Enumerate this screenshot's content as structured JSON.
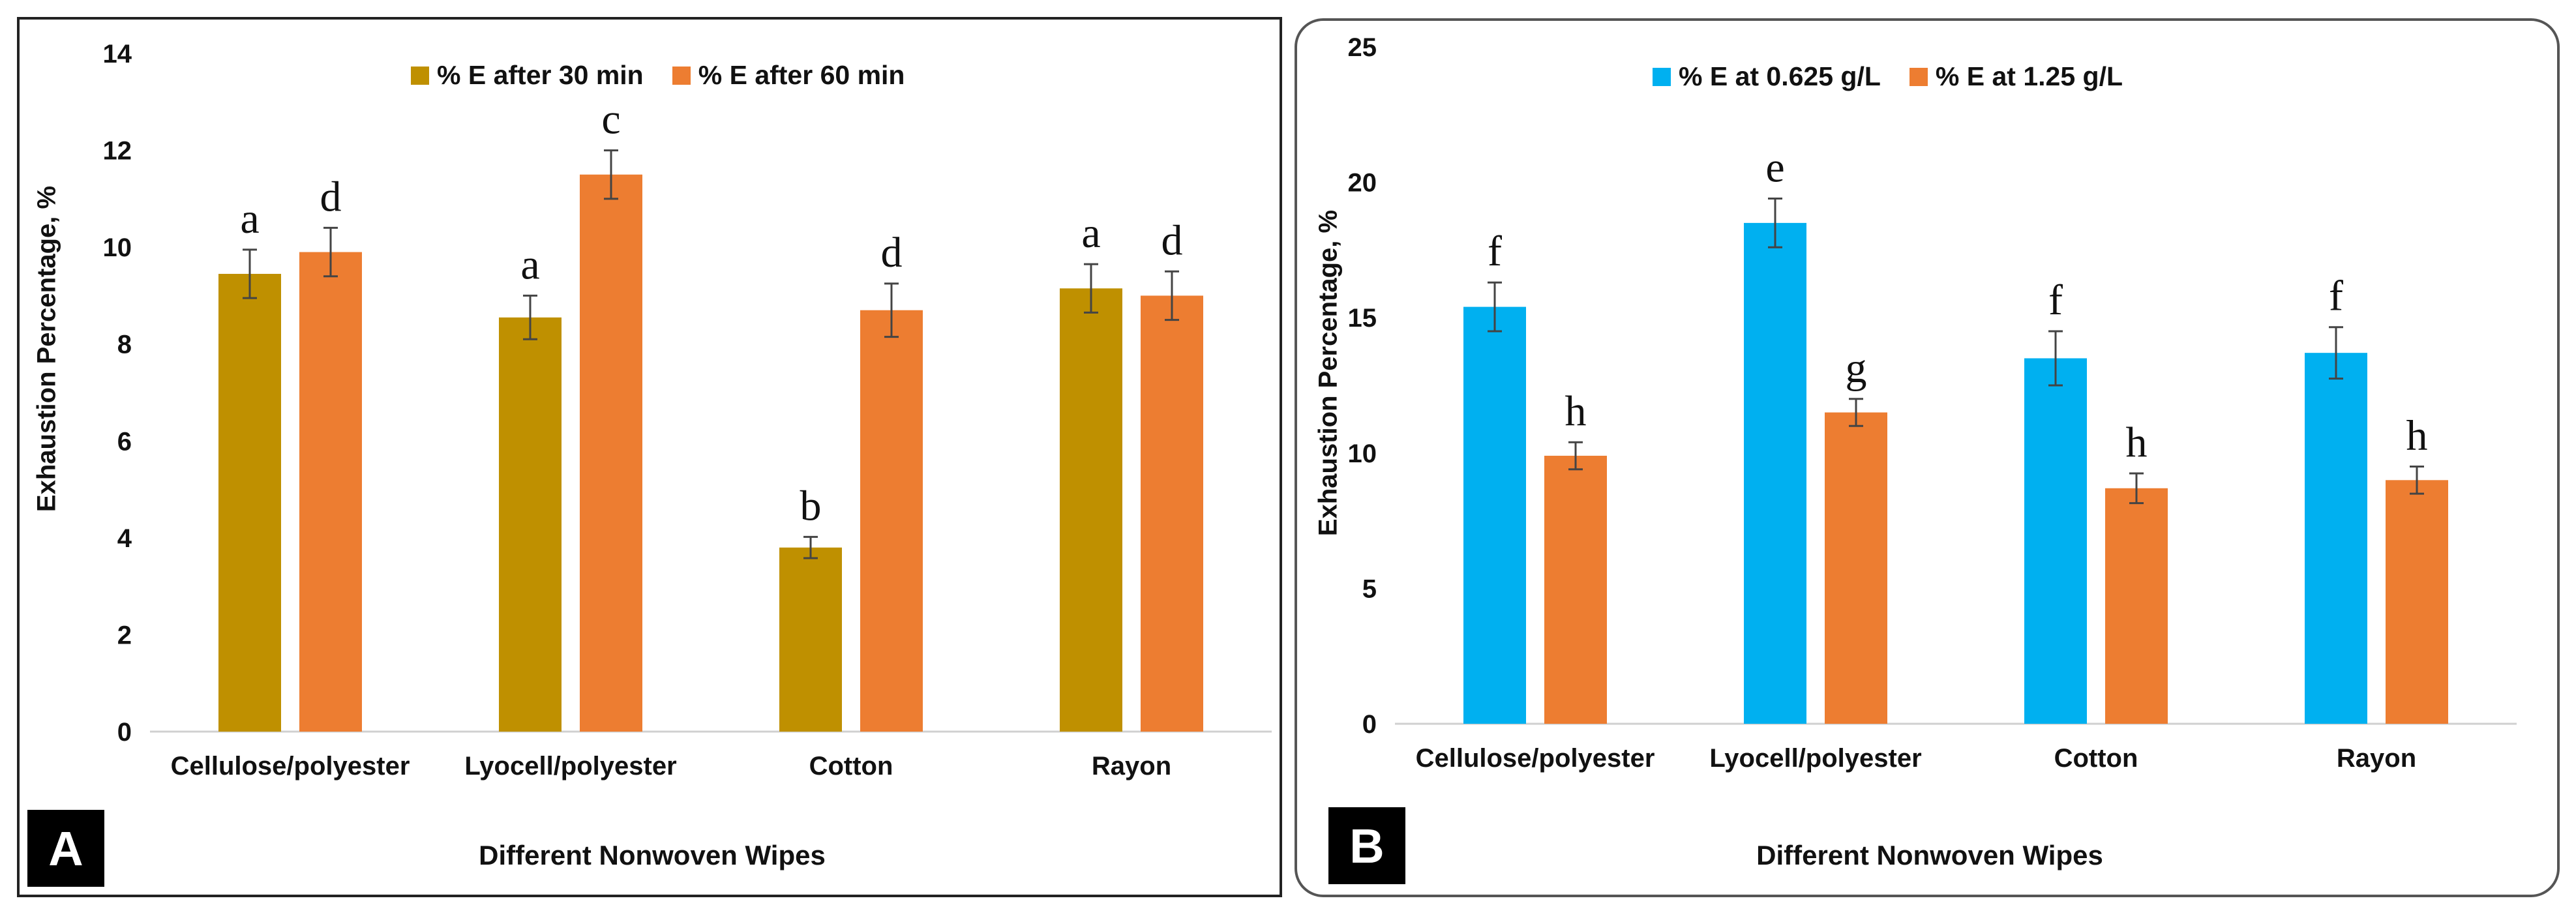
{
  "chart_data": [
    {
      "panel_label": "A",
      "type": "bar",
      "categories": [
        "Cellulose/polyester",
        "Lyocell/polyester",
        "Cotton",
        "Rayon"
      ],
      "series": [
        {
          "name": "% E after 30 min",
          "color": "#BF9000",
          "values": [
            9.45,
            8.55,
            3.8,
            9.15
          ],
          "errors": [
            0.5,
            0.45,
            0.22,
            0.5
          ],
          "letters": [
            "a",
            "a",
            "b",
            "a"
          ]
        },
        {
          "name": "% E after 60 min",
          "color": "#ED7D31",
          "values": [
            9.9,
            11.5,
            8.7,
            9.0
          ],
          "errors": [
            0.5,
            0.5,
            0.55,
            0.5
          ],
          "letters": [
            "d",
            "c",
            "d",
            "d"
          ]
        }
      ],
      "xlabel": "Different Nonwoven Wipes",
      "ylabel": "Exhaustion Percentage, %",
      "ylim": [
        0,
        14
      ],
      "yticks": [
        0,
        2,
        4,
        6,
        8,
        10,
        12,
        14
      ],
      "grid": false,
      "legend_position": "top"
    },
    {
      "panel_label": "B",
      "type": "bar",
      "categories": [
        "Cellulose/polyester",
        "Lyocell/polyester",
        "Cotton",
        "Rayon"
      ],
      "series": [
        {
          "name": "% E at 0.625 g/L",
          "color": "#00B0F0",
          "values": [
            15.4,
            18.5,
            13.5,
            13.7
          ],
          "errors": [
            0.9,
            0.9,
            1.0,
            0.95
          ],
          "letters": [
            "f",
            "e",
            "f",
            "f"
          ]
        },
        {
          "name": "% E at 1.25 g/L",
          "color": "#ED7D31",
          "values": [
            9.9,
            11.5,
            8.7,
            9.0
          ],
          "errors": [
            0.5,
            0.5,
            0.55,
            0.5
          ],
          "letters": [
            "h",
            "g",
            "h",
            "h"
          ]
        }
      ],
      "xlabel": "Different Nonwoven Wipes",
      "ylabel": "Exhaustion Percentage, %",
      "ylim": [
        0,
        25
      ],
      "yticks": [
        0,
        5,
        10,
        15,
        20,
        25
      ],
      "grid": false,
      "legend_position": "top"
    }
  ]
}
